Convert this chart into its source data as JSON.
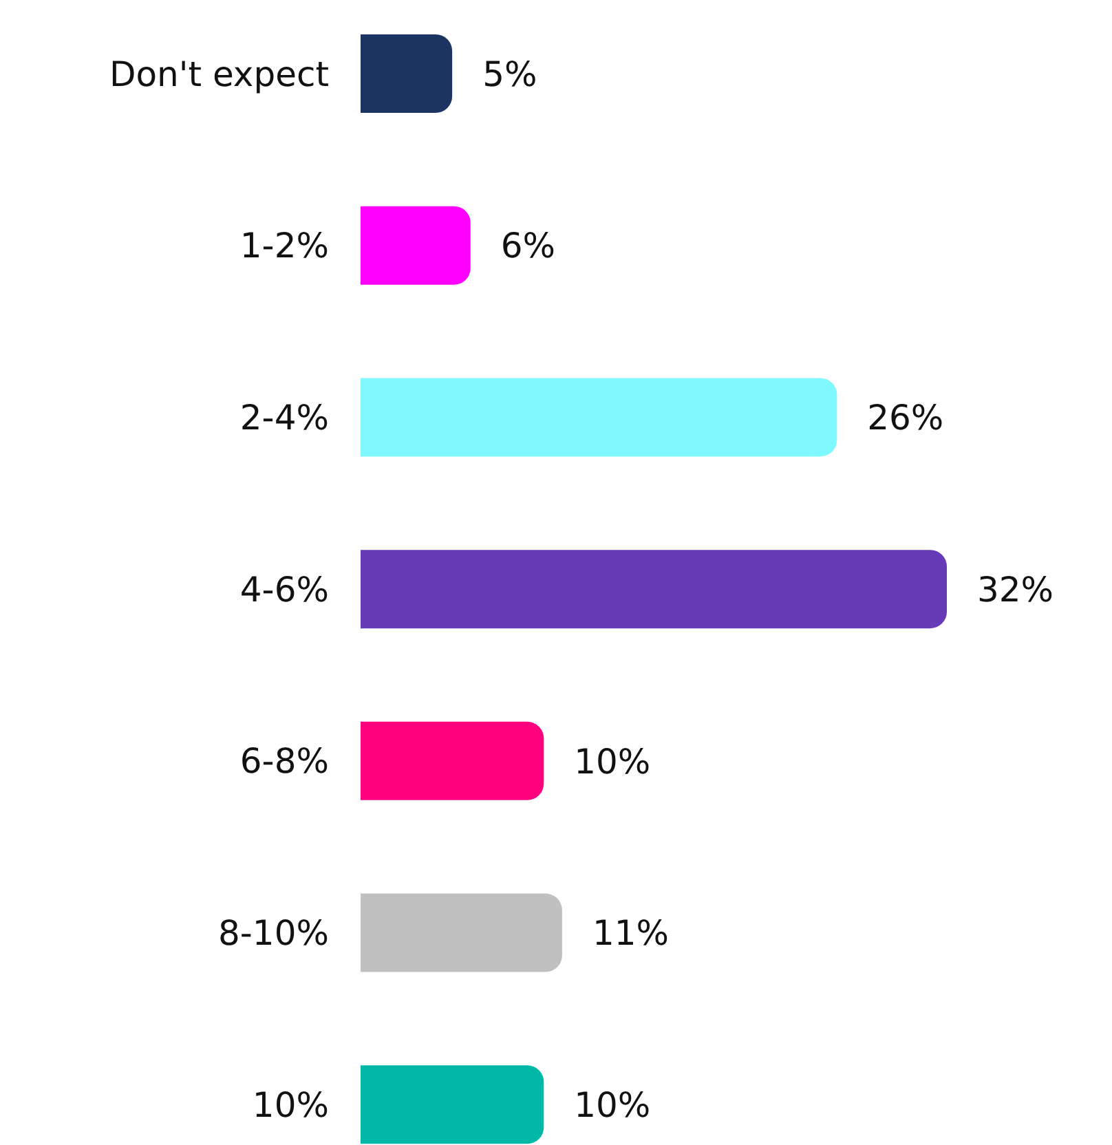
{
  "chart_data": {
    "type": "bar",
    "orientation": "horizontal",
    "categories": [
      "Don't expect",
      "1-2%",
      "2-4%",
      "4-6%",
      "6-8%",
      "8-10%",
      "10%"
    ],
    "values": [
      5,
      6,
      26,
      32,
      10,
      11,
      10
    ],
    "value_labels": [
      "5%",
      "6%",
      "26%",
      "32%",
      "10%",
      "11%",
      "10%"
    ],
    "colors": [
      "#1c3461",
      "#ff00ff",
      "#7ff9ff",
      "#673ab7",
      "#ff007f",
      "#c0c0c0",
      "#00b8a8"
    ]
  }
}
